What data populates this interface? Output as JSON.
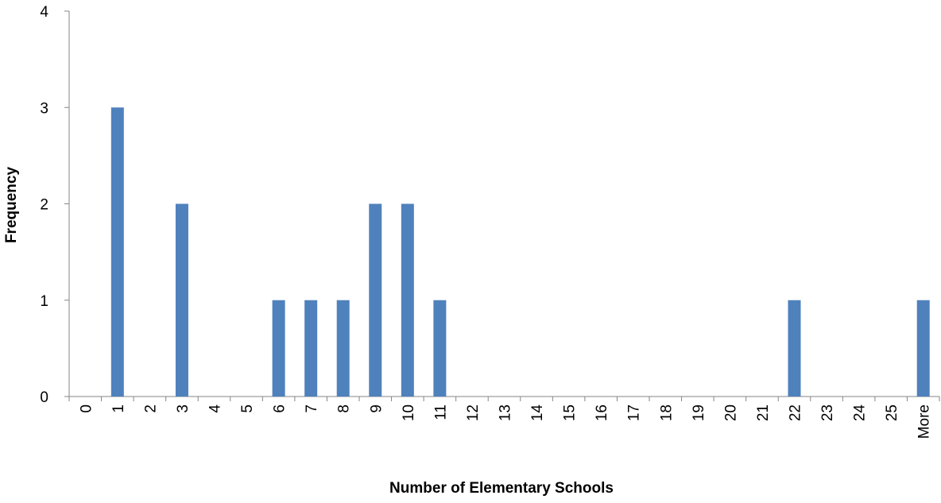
{
  "chart_data": {
    "type": "bar",
    "title": "",
    "xlabel": "Number of Elementary Schools",
    "ylabel": "Frequency",
    "categories": [
      "0",
      "1",
      "2",
      "3",
      "4",
      "5",
      "6",
      "7",
      "8",
      "9",
      "10",
      "11",
      "12",
      "13",
      "14",
      "15",
      "16",
      "17",
      "18",
      "19",
      "20",
      "21",
      "22",
      "23",
      "24",
      "25",
      "More"
    ],
    "values": [
      0,
      3,
      0,
      2,
      0,
      0,
      1,
      1,
      1,
      2,
      2,
      1,
      0,
      0,
      0,
      0,
      0,
      0,
      0,
      0,
      0,
      0,
      1,
      0,
      0,
      0,
      1
    ],
    "ylim": [
      0,
      4
    ],
    "yticks": [
      0,
      1,
      2,
      3,
      4
    ],
    "bar_color": "#4f81bd",
    "grid": false,
    "legend": "none"
  }
}
